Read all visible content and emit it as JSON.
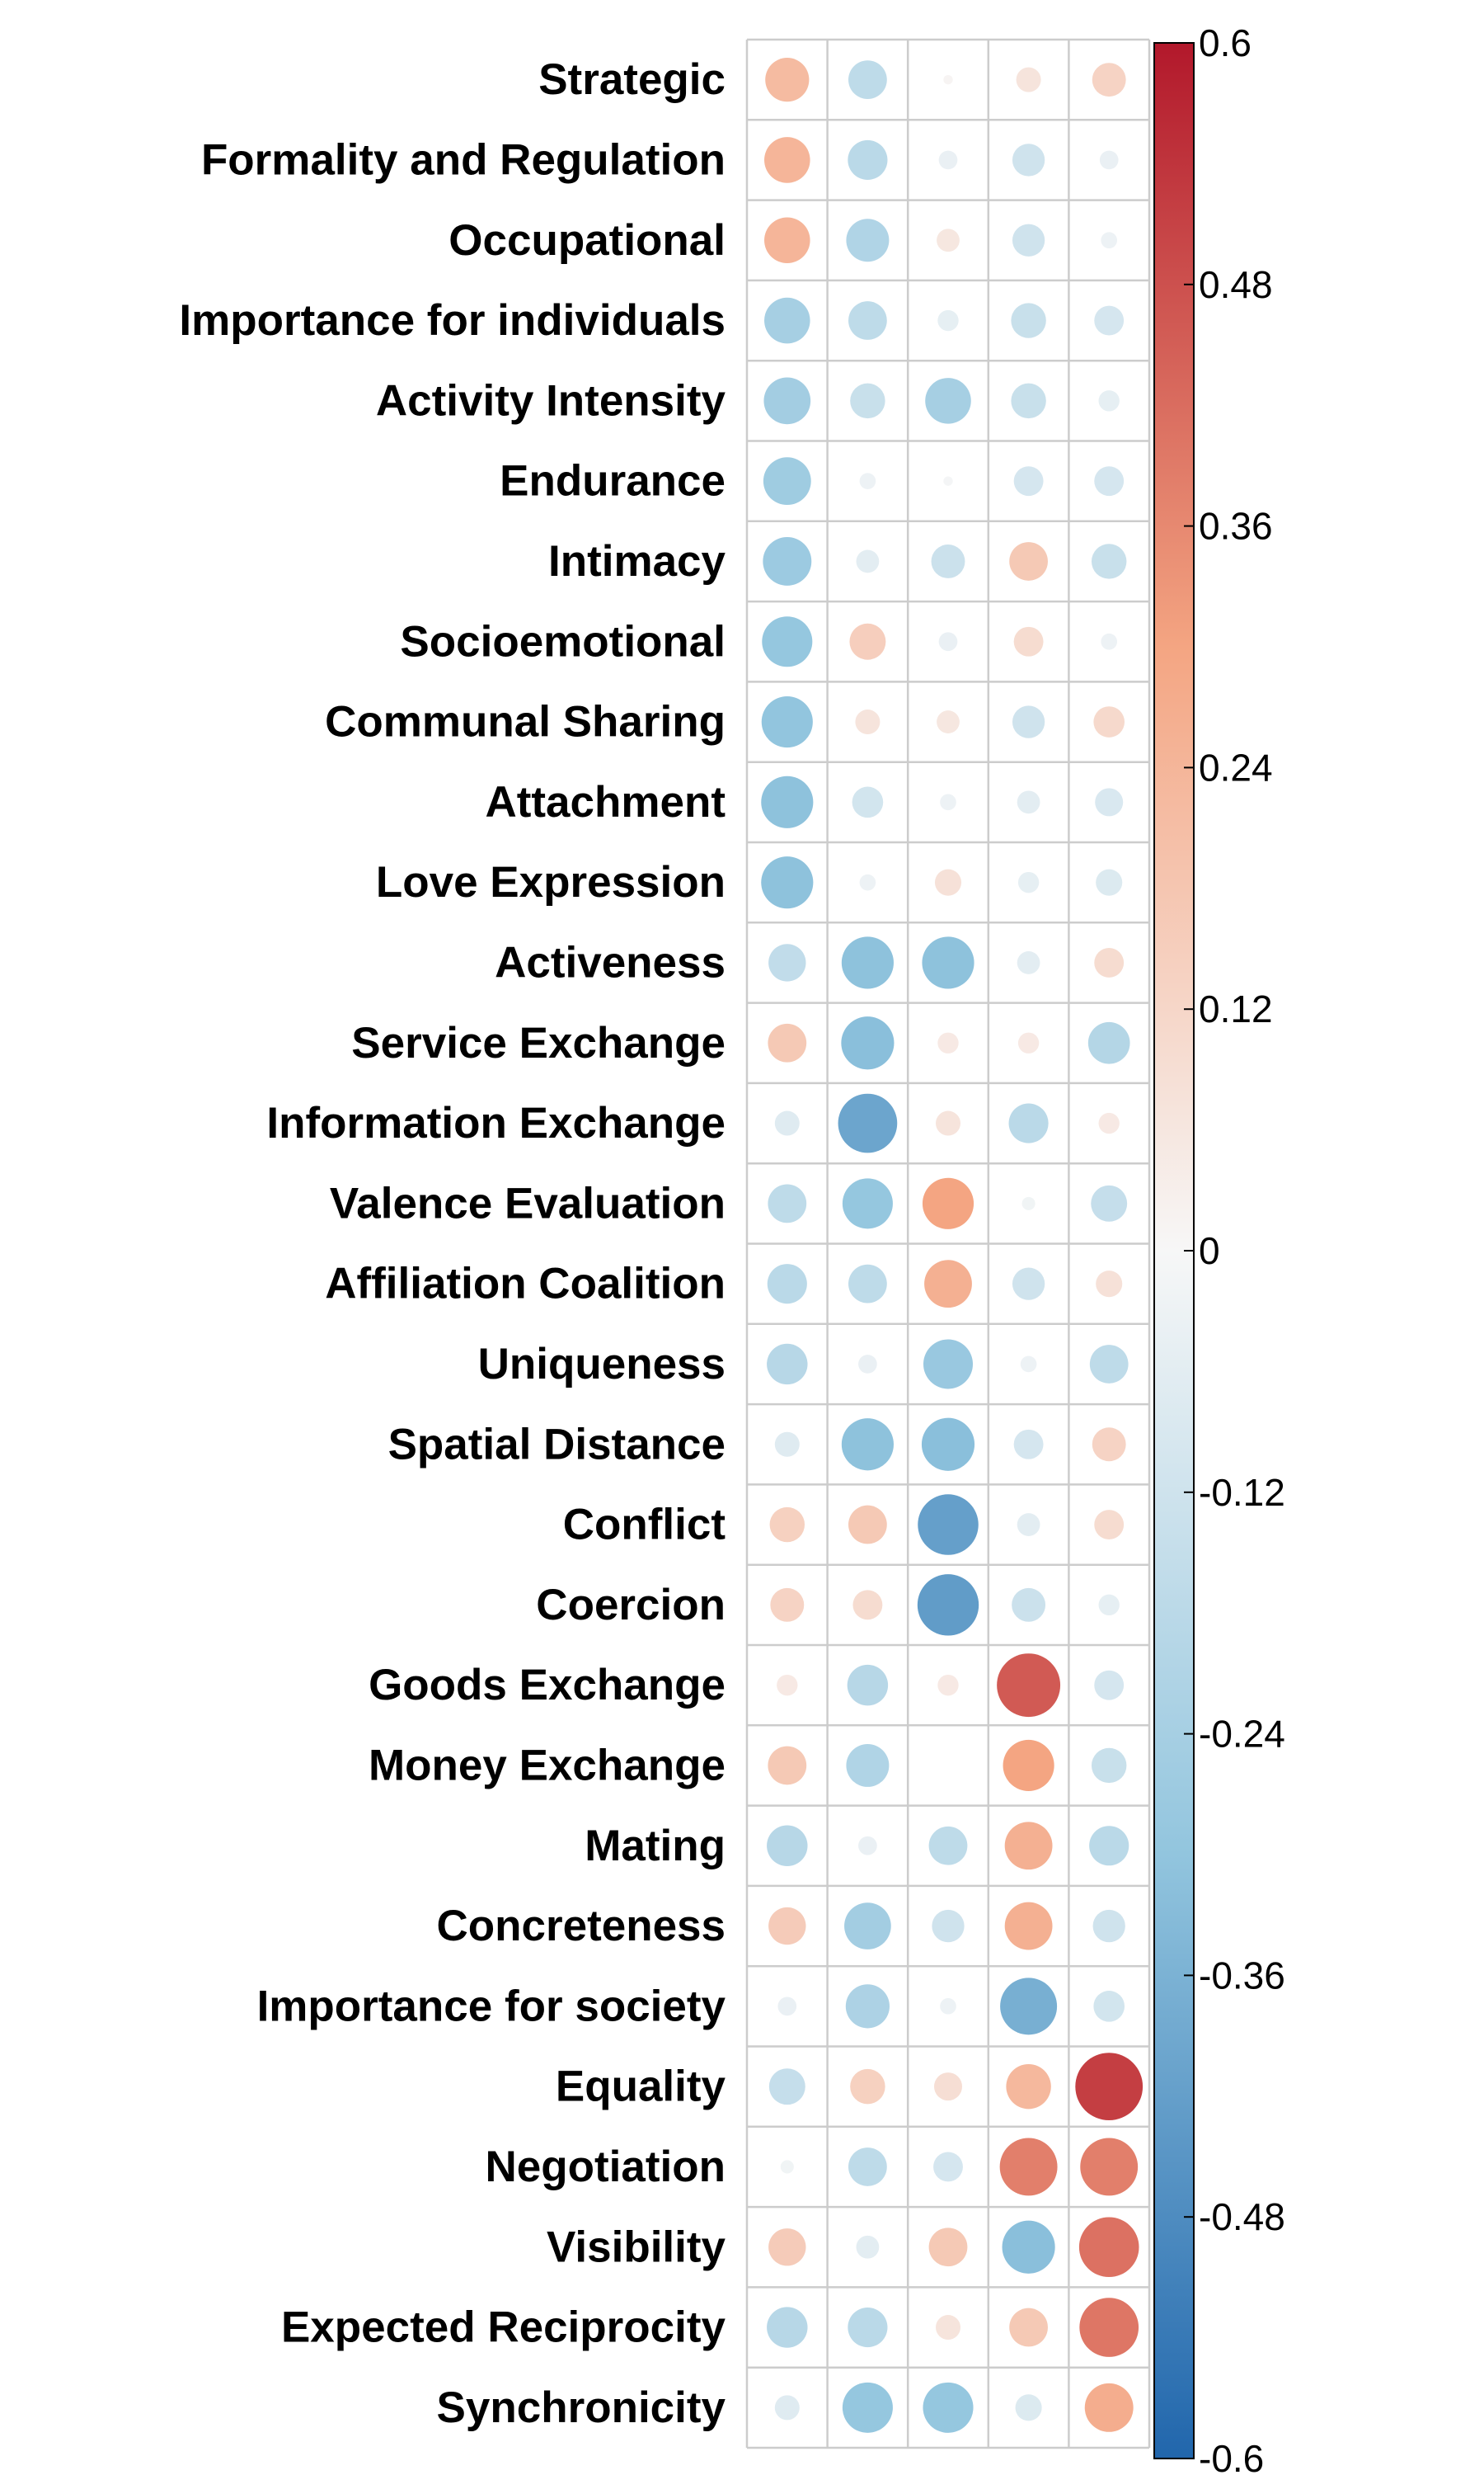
{
  "chart_data": {
    "type": "heatmap",
    "title": "",
    "xlabel": "",
    "ylabel": "",
    "rows": [
      "Strategic",
      "Formality and Regulation",
      "Occupational",
      "Importance for individuals",
      "Activity Intensity",
      "Endurance",
      "Intimacy",
      "Socioemotional",
      "Communal Sharing",
      "Attachment",
      "Love Expression",
      "Activeness",
      "Service Exchange",
      "Information Exchange",
      "Valence Evaluation",
      "Affiliation Coalition",
      "Uniqueness",
      "Spatial Distance",
      "Conflict",
      "Coercion",
      "Goods Exchange",
      "Money Exchange",
      "Mating",
      "Concreteness",
      "Importance for society",
      "Equality",
      "Negotiation",
      "Visibility",
      "Expected Reciprocity",
      "Synchronicity"
    ],
    "columns": [
      "",
      "",
      "",
      "",
      ""
    ],
    "values": [
      [
        0.22,
        -0.17,
        0.01,
        0.07,
        0.13
      ],
      [
        0.24,
        -0.18,
        -0.04,
        -0.12,
        -0.04
      ],
      [
        0.24,
        -0.21,
        0.06,
        -0.12,
        -0.03
      ],
      [
        -0.24,
        -0.17,
        -0.05,
        -0.14,
        -0.1
      ],
      [
        -0.25,
        -0.14,
        -0.24,
        -0.14,
        -0.05
      ],
      [
        -0.26,
        -0.03,
        -0.01,
        -0.1,
        -0.1
      ],
      [
        -0.27,
        -0.06,
        -0.13,
        0.17,
        -0.14
      ],
      [
        -0.29,
        0.15,
        -0.04,
        0.1,
        -0.03
      ],
      [
        -0.3,
        0.07,
        0.06,
        -0.12,
        0.11
      ],
      [
        -0.31,
        -0.11,
        -0.03,
        -0.06,
        -0.09
      ],
      [
        -0.31,
        -0.03,
        0.08,
        -0.05,
        -0.08
      ],
      [
        -0.16,
        -0.31,
        -0.31,
        -0.06,
        0.1
      ],
      [
        0.17,
        -0.32,
        0.05,
        0.05,
        -0.2
      ],
      [
        -0.07,
        -0.4,
        0.07,
        -0.18,
        0.05
      ],
      [
        -0.17,
        -0.29,
        0.3,
        -0.02,
        -0.15
      ],
      [
        -0.18,
        -0.17,
        0.26,
        -0.12,
        0.08
      ],
      [
        -0.19,
        -0.04,
        -0.28,
        -0.03,
        -0.17
      ],
      [
        -0.07,
        -0.31,
        -0.32,
        -0.1,
        0.13
      ],
      [
        0.14,
        0.17,
        -0.42,
        -0.06,
        0.1
      ],
      [
        0.13,
        0.1,
        -0.43,
        -0.13,
        -0.05
      ],
      [
        0.05,
        -0.19,
        0.05,
        0.46,
        -0.1
      ],
      [
        0.17,
        -0.21,
        0.0,
        0.3,
        -0.14
      ],
      [
        -0.19,
        -0.04,
        -0.17,
        0.26,
        -0.18
      ],
      [
        0.16,
        -0.25,
        -0.12,
        0.26,
        -0.12
      ],
      [
        -0.04,
        -0.22,
        -0.03,
        -0.37,
        -0.11
      ],
      [
        -0.15,
        0.14,
        0.09,
        0.23,
        0.52
      ],
      [
        -0.02,
        -0.17,
        -0.1,
        0.38,
        0.38
      ],
      [
        0.16,
        -0.06,
        0.17,
        -0.32,
        0.41
      ],
      [
        -0.19,
        -0.18,
        0.07,
        0.17,
        0.4
      ],
      [
        -0.07,
        -0.29,
        -0.29,
        -0.08,
        0.27
      ]
    ],
    "colorbar": {
      "min": -0.6,
      "max": 0.6,
      "tick_labels": [
        "0.6",
        "0.48",
        "0.36",
        "0.24",
        "0.12",
        "0",
        "-0.12",
        "-0.24",
        "-0.36",
        "-0.48",
        "-0.6"
      ],
      "tick_values": [
        0.6,
        0.48,
        0.36,
        0.24,
        0.12,
        0,
        -0.12,
        -0.24,
        -0.36,
        -0.48,
        -0.6
      ],
      "colors": {
        "high": "#B2182B",
        "mid_high": "#F4A582",
        "mid": "#F7F7F7",
        "mid_low": "#92C5DE",
        "low": "#2166AC"
      }
    },
    "grid": true,
    "legend": "right"
  }
}
